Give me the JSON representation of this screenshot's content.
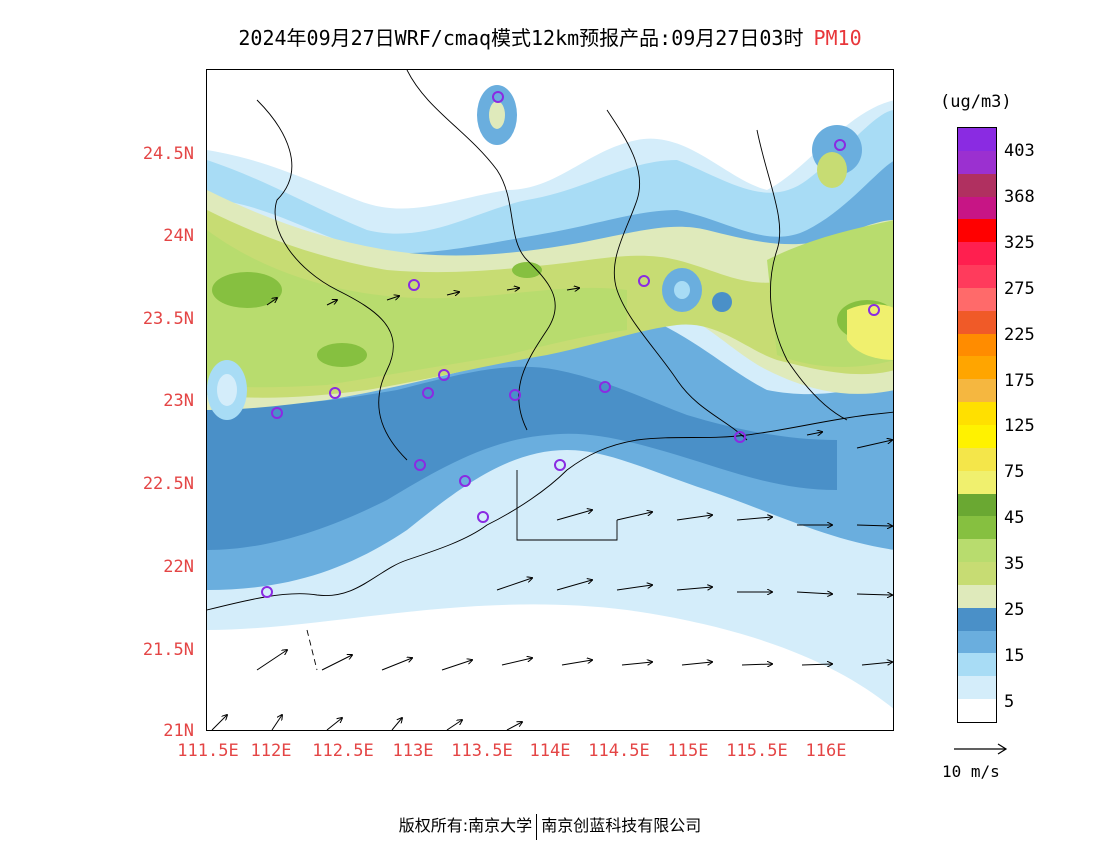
{
  "title": {
    "main": "2024年09月27日WRF/cmaq模式12km预报产品:09月27日03时",
    "tag": "PM10"
  },
  "latitude_labels": [
    "24.5N",
    "24N",
    "23.5N",
    "23N",
    "22.5N",
    "22N",
    "21.5N",
    "21N"
  ],
  "longitude_labels": [
    "111.5E",
    "112E",
    "112.5E",
    "113E",
    "113.5E",
    "114E",
    "114.5E",
    "115E",
    "115.5E",
    "116E"
  ],
  "colorbar": {
    "units": "(ug/m3)",
    "labels": [
      "403",
      "368",
      "325",
      "275",
      "225",
      "175",
      "125",
      "75",
      "45",
      "35",
      "25",
      "15",
      "5"
    ],
    "colors_top_to_bottom": [
      "#8a2be2",
      "#9b30d0",
      "#b03060",
      "#c71585",
      "#ff0000",
      "#ff1f4f",
      "#ff3b5c",
      "#ff6a6a",
      "#f05a28",
      "#ff8c00",
      "#ffa500",
      "#f5b740",
      "#ffe000",
      "#fff200",
      "#f4e64a",
      "#f0f06e",
      "#6aa832",
      "#86c040",
      "#b8dc6e",
      "#c7dc73",
      "#dfeabb",
      "#4a90c8",
      "#6aaede",
      "#a8dcf5",
      "#d4edfa",
      "#ffffff"
    ]
  },
  "wind_reference": {
    "label": "10 m/s"
  },
  "footer": {
    "left": "版权所有:南京大学",
    "right": "南京创蓝科技有限公司"
  }
}
